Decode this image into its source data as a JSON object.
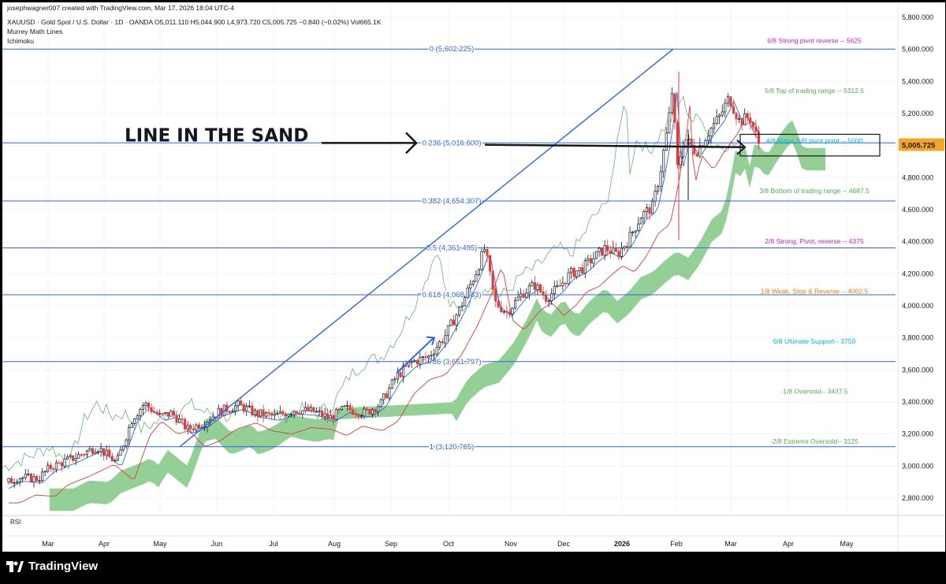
{
  "header": {
    "credit": "josephwagner007 created with TradingView.com, Mar 17, 2026 18:04 UTC-4",
    "symbol_line": "XAUUSD · Gold Spot / U.S. Dollar · 1D · OANDA  O5,011.110  H5,044.900  L4,973.720  C5,005.725  −0.840 (−0.02%)  Vol665.1K",
    "indicator_1": "Murrey Math Lines",
    "indicator_2": "Ichimoku"
  },
  "rsi_label": "RSI",
  "footer": {
    "brand": "TradingView"
  },
  "annotation": {
    "text": "LINE IN THE SAND"
  },
  "colors": {
    "fib": "#2962ff",
    "ma_blue": "#2962ff",
    "ma_red": "#e53935",
    "cloud": "#66bb6a",
    "lagging": "#43a047",
    "candle_up": "#131722",
    "candle_down": "#e53935",
    "price_tag": "#f5a623",
    "murrey_magenta": "#d020d0",
    "murrey_green": "#4caf50",
    "murrey_orange": "#f57c00",
    "murrey_cyan": "#00b8d4"
  },
  "chart_data": {
    "type": "candlestick",
    "title": "XAUUSD · Gold Spot / U.S. Dollar · 1D · OANDA",
    "ylim": [
      2650,
      5800
    ],
    "y_ticks": [
      2800,
      3000,
      3200,
      3400,
      3600,
      3800,
      4000,
      4200,
      4400,
      4600,
      4800,
      5000,
      5200,
      5400,
      5600,
      5800
    ],
    "y_tick_labels": [
      "2,800.000",
      "3,000.000",
      "3,200.000",
      "3,400.000",
      "3,600.000",
      "3,800.000",
      "4,000.000",
      "4,200.000",
      "4,400.000",
      "4,600.000",
      "4,800.000",
      "5,000.000",
      "5,200.000",
      "5,400.000",
      "5,600.000",
      "5,800.000"
    ],
    "x_labels": [
      "Mar",
      "Apr",
      "May",
      "Jun",
      "Jul",
      "Aug",
      "Sep",
      "Oct",
      "Nov",
      "Dec",
      "2026",
      "Feb",
      "Mar",
      "Apr",
      "May"
    ],
    "current_price": 5005.725,
    "current_price_label": "5,005.725",
    "fib_levels": [
      {
        "ratio": "0",
        "value": 5602.225,
        "label": "0 (5,602.225)"
      },
      {
        "ratio": "0.236",
        "value": 5016.6,
        "label": "0.236 (5,016.600)"
      },
      {
        "ratio": "0.382",
        "value": 4654.307,
        "label": "0.382 (4,654.307)"
      },
      {
        "ratio": "0.5",
        "value": 4361.495,
        "label": "0.5 (4,361.495)"
      },
      {
        "ratio": "0.618",
        "value": 4068.683,
        "label": "0.618 (4,068.683)"
      },
      {
        "ratio": "0.786",
        "value": 3651.797,
        "label": "0.786 (3,651.797)"
      },
      {
        "ratio": "1",
        "value": 3120.765,
        "label": "1 (3,120.765)"
      }
    ],
    "murrey_levels": [
      {
        "value": 5625,
        "label": "6/8 Strong pivot reverse --  5625",
        "color": "#d020d0"
      },
      {
        "value": 5312.5,
        "label": "5/8 Top of trading range --  5312.5",
        "color": "#4caf50"
      },
      {
        "value": 5000,
        "label": "4/8 Major S/R pivot point --  5000",
        "color": "#00b8d4"
      },
      {
        "value": 4687.5,
        "label": "3/8 Bottom of trading range --  4687.5",
        "color": "#4caf50"
      },
      {
        "value": 4375,
        "label": "2/8 Strong, Pivot, reverse --  4375",
        "color": "#d020d0"
      },
      {
        "value": 4062.5,
        "label": "1/8 Weak, Stop & Reverse --  4062.5",
        "color": "#f57c00"
      },
      {
        "value": 3750,
        "label": "0/8 Ultimate Support--  3750",
        "color": "#00b8d4"
      },
      {
        "value": 3437.5,
        "label": "-1/8 Oversold--  3437.5",
        "color": "#4caf50"
      },
      {
        "value": 3125,
        "label": "-2/8 Extreme Oversold--  3125",
        "color": "#4caf50"
      }
    ],
    "price_path": [
      [
        0,
        2880
      ],
      [
        20,
        2930
      ],
      [
        45,
        2920
      ],
      [
        60,
        2990
      ],
      [
        90,
        3050
      ],
      [
        120,
        3120
      ],
      [
        145,
        3020
      ],
      [
        165,
        3300
      ],
      [
        180,
        3390
      ],
      [
        200,
        3310
      ],
      [
        215,
        3330
      ],
      [
        235,
        3230
      ],
      [
        255,
        3270
      ],
      [
        275,
        3340
      ],
      [
        300,
        3380
      ],
      [
        320,
        3330
      ],
      [
        345,
        3310
      ],
      [
        370,
        3350
      ],
      [
        395,
        3340
      ],
      [
        415,
        3300
      ],
      [
        435,
        3360
      ],
      [
        460,
        3330
      ],
      [
        480,
        3390
      ],
      [
        500,
        3560
      ],
      [
        520,
        3650
      ],
      [
        540,
        3680
      ],
      [
        560,
        3800
      ],
      [
        580,
        3980
      ],
      [
        600,
        4200
      ],
      [
        612,
        4360
      ],
      [
        625,
        4020
      ],
      [
        640,
        3960
      ],
      [
        660,
        4080
      ],
      [
        675,
        4130
      ],
      [
        690,
        4050
      ],
      [
        705,
        4110
      ],
      [
        720,
        4200
      ],
      [
        735,
        4230
      ],
      [
        750,
        4300
      ],
      [
        765,
        4360
      ],
      [
        780,
        4320
      ],
      [
        795,
        4420
      ],
      [
        810,
        4560
      ],
      [
        825,
        4620
      ],
      [
        835,
        4850
      ],
      [
        845,
        5150
      ],
      [
        850,
        5360
      ],
      [
        856,
        4850
      ],
      [
        865,
        5050
      ],
      [
        880,
        4960
      ],
      [
        895,
        5080
      ],
      [
        910,
        5180
      ],
      [
        922,
        5300
      ],
      [
        935,
        5150
      ],
      [
        948,
        5180
      ],
      [
        960,
        5005
      ]
    ],
    "candle_range_x": [
      8,
      962
    ]
  }
}
